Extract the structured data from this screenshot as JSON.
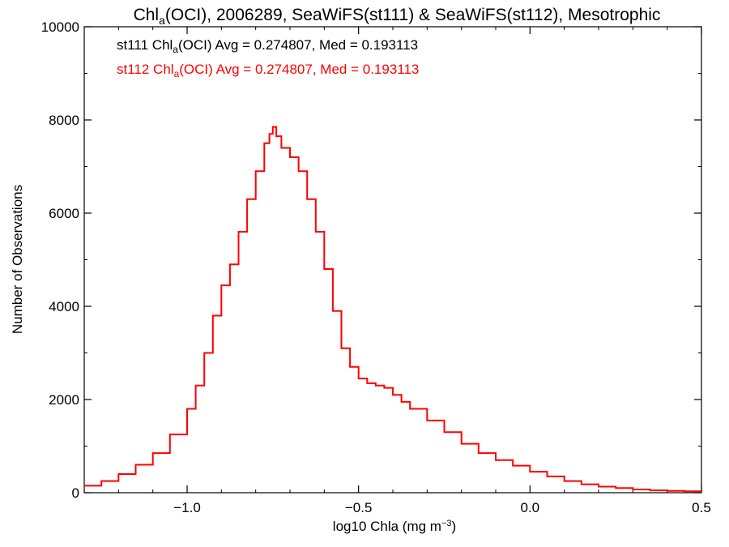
{
  "chart_data": {
    "type": "line",
    "title_parts": {
      "pre": "Chl",
      "sub": "a",
      "post": "(OCI), 2006289, SeaWiFS(st111) & SeaWiFS(st112), Mesotrophic"
    },
    "xlabel_parts": {
      "pre": "log10 Chla (mg m",
      "sup": "−3",
      "post": ")"
    },
    "ylabel": "Number of Observations",
    "xlim": [
      -1.3,
      0.5
    ],
    "ylim": [
      0,
      10000
    ],
    "x_ticks": [
      -1.0,
      -0.5,
      0.0,
      0.5
    ],
    "x_tick_labels": [
      "−1.0",
      "−0.5",
      "0.0",
      "0.5"
    ],
    "y_ticks": [
      0,
      2000,
      4000,
      6000,
      8000,
      10000
    ],
    "y_tick_labels": [
      "0",
      "2000",
      "4000",
      "6000",
      "8000",
      "10000"
    ],
    "grid": false,
    "legend": [
      {
        "pre": "st111 Chl",
        "sub": "a",
        "post": "(OCI) Avg = 0.274807, Med = 0.193113",
        "color": "#000000"
      },
      {
        "pre": "st112 Chl",
        "sub": "a",
        "post": "(OCI) Avg = 0.274807, Med = 0.193113",
        "color": "#ff0000"
      }
    ],
    "series": [
      {
        "color": "#ff0000",
        "step": true,
        "x": [
          -1.3,
          -1.25,
          -1.2,
          -1.15,
          -1.1,
          -1.05,
          -1.0,
          -0.975,
          -0.95,
          -0.925,
          -0.9,
          -0.875,
          -0.85,
          -0.825,
          -0.8,
          -0.775,
          -0.76,
          -0.75,
          -0.74,
          -0.725,
          -0.7,
          -0.675,
          -0.65,
          -0.625,
          -0.6,
          -0.575,
          -0.55,
          -0.525,
          -0.5,
          -0.475,
          -0.45,
          -0.425,
          -0.4,
          -0.375,
          -0.35,
          -0.3,
          -0.25,
          -0.2,
          -0.15,
          -0.1,
          -0.05,
          0.0,
          0.05,
          0.1,
          0.15,
          0.2,
          0.25,
          0.3,
          0.35,
          0.4,
          0.45,
          0.5
        ],
        "y": [
          150,
          250,
          400,
          600,
          850,
          1250,
          1800,
          2300,
          3000,
          3800,
          4450,
          4900,
          5600,
          6300,
          6900,
          7500,
          7700,
          7850,
          7650,
          7400,
          7200,
          6900,
          6300,
          5600,
          4800,
          3900,
          3100,
          2700,
          2450,
          2350,
          2300,
          2250,
          2100,
          1950,
          1800,
          1550,
          1300,
          1050,
          850,
          700,
          580,
          450,
          350,
          250,
          180,
          130,
          100,
          70,
          50,
          40,
          30,
          20
        ]
      }
    ]
  }
}
